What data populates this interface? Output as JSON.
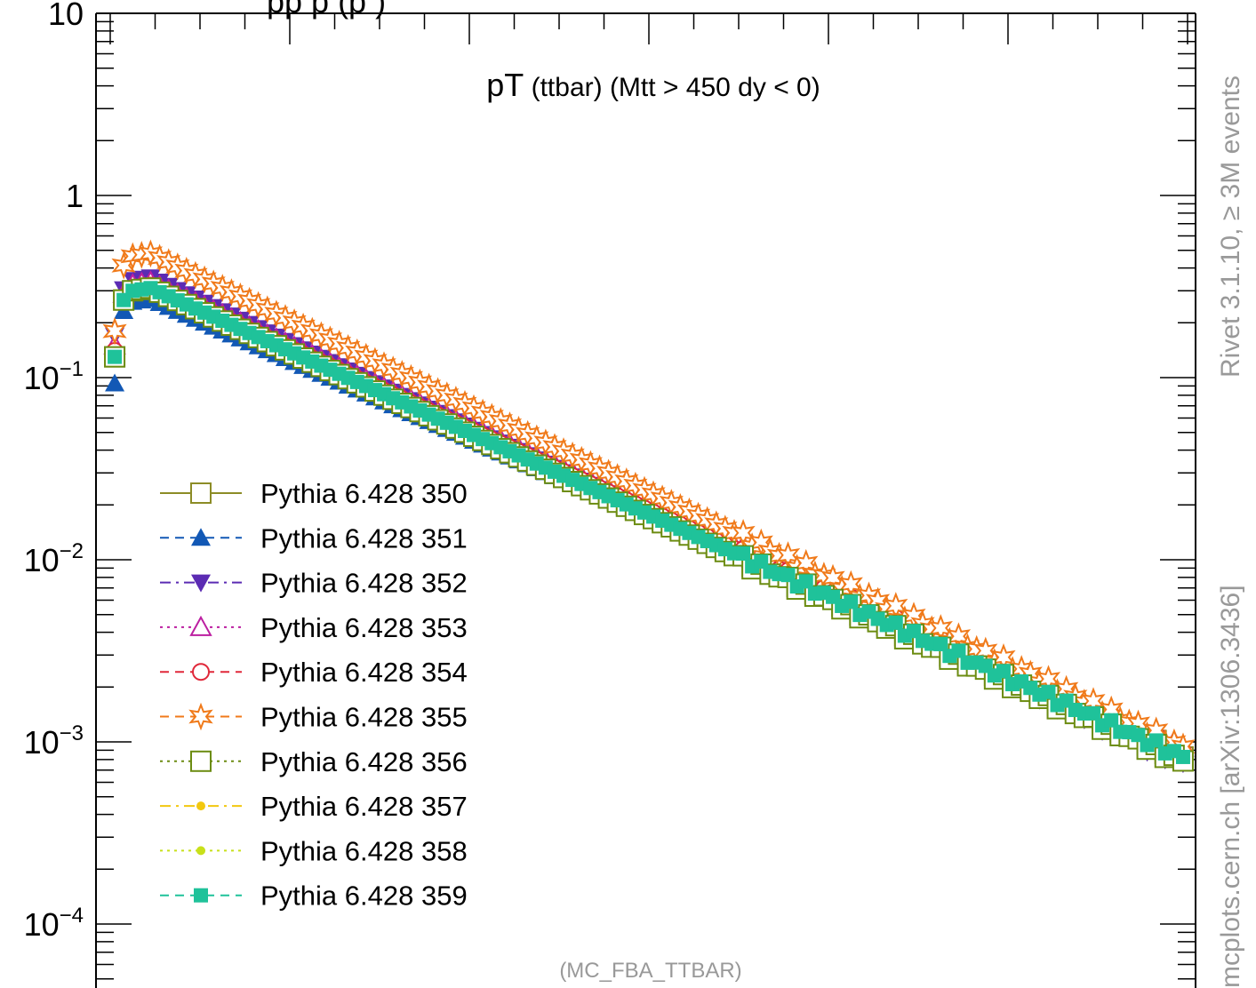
{
  "chart_data": {
    "type": "scatter",
    "title": {
      "main": "pT",
      "sub": " (ttbar) (Mtt > 450 dy < 0)"
    },
    "top_cut_text": "pp                                                    p (p     )",
    "y_scale": "log",
    "ylim": [
      6e-05,
      10
    ],
    "xlim": [
      0,
      1200
    ],
    "y_tick_labels": [
      {
        "value": 10,
        "base": "10",
        "exp": ""
      },
      {
        "value": 1,
        "base": "1",
        "exp": ""
      },
      {
        "value": 0.1,
        "base": "10",
        "exp": "−1"
      },
      {
        "value": 0.01,
        "base": "10",
        "exp": "−2"
      },
      {
        "value": 0.001,
        "base": "10",
        "exp": "−3"
      },
      {
        "value": 0.0001,
        "base": "10",
        "exp": "−4"
      }
    ],
    "x": [
      5,
      15,
      25,
      35,
      45,
      55,
      65,
      75,
      85,
      95,
      105,
      115,
      125,
      135,
      145,
      155,
      165,
      175,
      185,
      195,
      205,
      215,
      225,
      235,
      245,
      255,
      265,
      275,
      285,
      295,
      305,
      315,
      325,
      335,
      345,
      355,
      365,
      375,
      385,
      395,
      405,
      415,
      425,
      435,
      445,
      455,
      465,
      475,
      485,
      495,
      505,
      515,
      525,
      535,
      545,
      555,
      565,
      575,
      585,
      595,
      605,
      615,
      625,
      635,
      645,
      655,
      665,
      675,
      685,
      695,
      705,
      715,
      725,
      735,
      745,
      755,
      765,
      775,
      785,
      795,
      805,
      815,
      825,
      835,
      845,
      855,
      865,
      875,
      885,
      895,
      905,
      915,
      925,
      935,
      945,
      955,
      965,
      975,
      985,
      995,
      1005,
      1015,
      1025,
      1035,
      1045,
      1055,
      1065,
      1075,
      1085,
      1095,
      1105,
      1115,
      1125,
      1135,
      1145,
      1155,
      1165,
      1175,
      1185,
      1195
    ],
    "legend_position": "lower-left",
    "series": [
      {
        "name": "Pythia 6.428 350",
        "color": "#8c8c26",
        "line": "solid",
        "marker": "square-open",
        "at5": 0.13,
        "peak": 0.31,
        "slope": 0.00448
      },
      {
        "name": "Pythia 6.428 351",
        "color": "#1258b5",
        "line": "dashed",
        "marker": "triangle-up-filled",
        "at5": 0.093,
        "peak": 0.27,
        "slope": 0.00432
      },
      {
        "name": "Pythia 6.428 352",
        "color": "#5b2bb3",
        "line": "dashdot",
        "marker": "triangle-down-filled",
        "at5": 0.17,
        "peak": 0.355,
        "slope": 0.00465
      },
      {
        "name": "Pythia 6.428 353",
        "color": "#bc1fa1",
        "line": "dotted",
        "marker": "triangle-up-open",
        "at5": 0.15,
        "peak": 0.335,
        "slope": 0.00445
      },
      {
        "name": "Pythia 6.428 354",
        "color": "#e0283a",
        "line": "dashed",
        "marker": "circle-open",
        "at5": 0.14,
        "peak": 0.32,
        "slope": 0.00445
      },
      {
        "name": "Pythia 6.428 355",
        "color": "#f07a1a",
        "line": "dashed",
        "marker": "star-open",
        "at5": 0.18,
        "peak": 0.48,
        "slope": 0.00472
      },
      {
        "name": "Pythia 6.428 356",
        "color": "#6c8c12",
        "line": "dotted",
        "marker": "square-open",
        "at5": 0.13,
        "peak": 0.31,
        "slope": 0.00452
      },
      {
        "name": "Pythia 6.428 357",
        "color": "#f2c80f",
        "line": "dashdot",
        "marker": "dot",
        "at5": 0.13,
        "peak": 0.31,
        "slope": 0.00448
      },
      {
        "name": "Pythia 6.428 358",
        "color": "#c8e01a",
        "line": "dotted",
        "marker": "dot",
        "at5": 0.13,
        "peak": 0.31,
        "slope": 0.00448
      },
      {
        "name": "Pythia 6.428 359",
        "color": "#1fc29a",
        "line": "dashed",
        "marker": "square-filled",
        "at5": 0.13,
        "peak": 0.31,
        "slope": 0.00448
      }
    ]
  },
  "side_text": {
    "rivet": "Rivet 3.1.10, ≥ 3M events",
    "mcplots": "mcplots.cern.ch [arXiv:1306.3436]"
  },
  "analysis_tag": "(MC_FBA_TTBAR)"
}
